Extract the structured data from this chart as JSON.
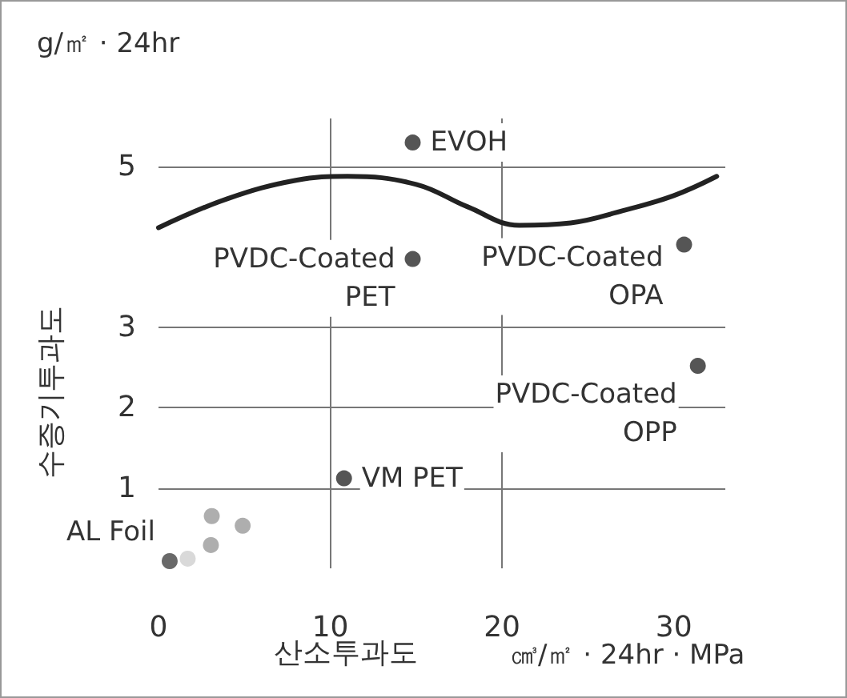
{
  "chart_data": {
    "type": "scatter",
    "xlabel": "산소투과도",
    "ylabel": "수증기투과도",
    "annotations": [
      "g/㎡ · 24hr",
      "㎤/㎡ · 24hr · MPa",
      {
        "text": "EVOH",
        "x": 14.8,
        "y": 5.3
      },
      {
        "text": "PVDC-Coated\nPET",
        "x": 14.8,
        "y": 3.85
      },
      {
        "text": "PVDC-Coated\nOPA",
        "x": 30.6,
        "y": 4.03
      },
      {
        "text": "PVDC-Coated\nOPP",
        "x": 31.4,
        "y": 2.52
      },
      {
        "text": "VM PET",
        "x": 10.8,
        "y": 1.12
      },
      {
        "text": "AL Foil",
        "x": 0.65,
        "y": 0.09
      }
    ],
    "xlim": [
      0,
      33
    ],
    "xticks": [
      0,
      10,
      20,
      30
    ],
    "ylim": [
      0,
      5.6
    ],
    "yticks": [
      1,
      2,
      3,
      5
    ],
    "grid": true,
    "series": [
      {
        "marker": "circle",
        "x": [
          14.8,
          14.8,
          30.6,
          31.4,
          10.8,
          3.1,
          4.9,
          3.05,
          1.7,
          0.65
        ],
        "values": [
          5.3,
          3.85,
          4.03,
          2.52,
          1.12,
          0.65,
          0.53,
          0.29,
          0.12,
          0.09
        ],
        "colors": [
          "#2b2b2b",
          "#2b2b2b",
          "#2b2b2b",
          "#2b2b2b",
          "#2b2b2b",
          "#9a9a9a",
          "#9a9a9a",
          "#9a9a9a",
          "#d0d0d0",
          "#444444"
        ]
      },
      {
        "type": "line",
        "color": "#222222",
        "x": [
          0,
          4,
          8,
          11,
          15,
          18,
          21,
          24,
          27,
          30,
          32.5
        ],
        "values": [
          4.24,
          4.6,
          4.83,
          4.88,
          4.78,
          4.5,
          4.27,
          4.3,
          4.45,
          4.64,
          4.88
        ]
      }
    ]
  }
}
